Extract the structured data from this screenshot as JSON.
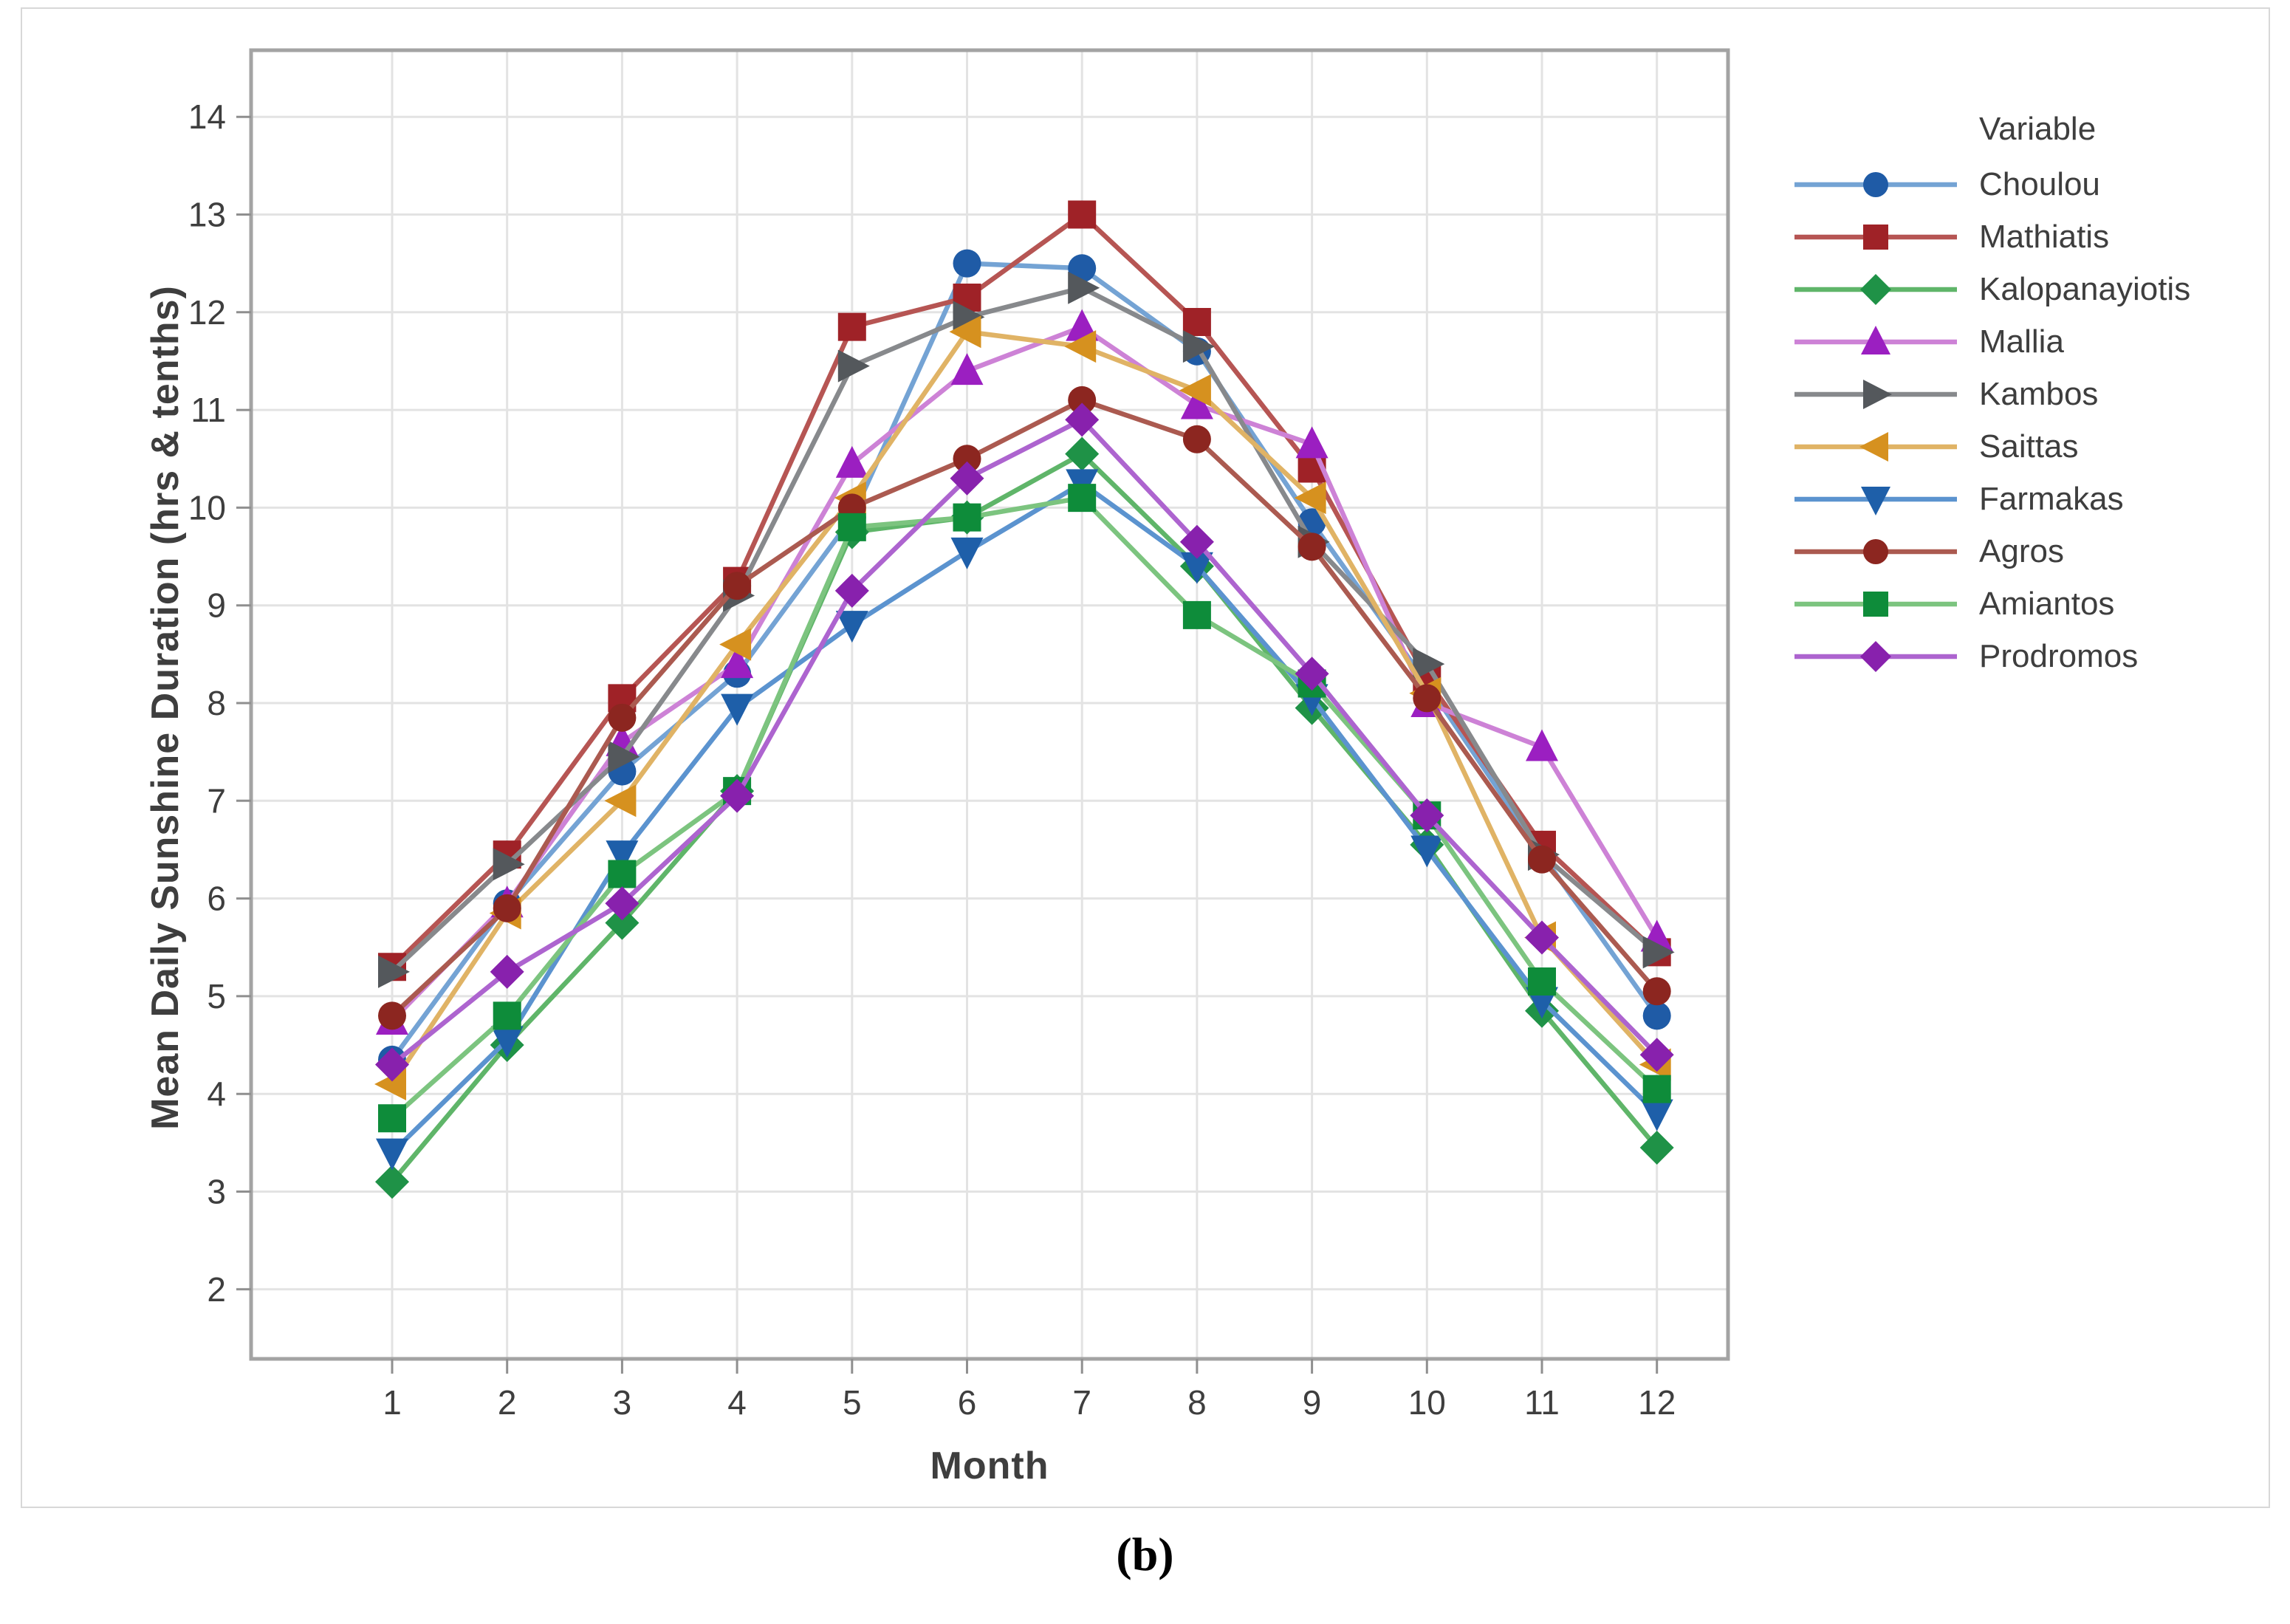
{
  "figure": {
    "caption": "(b)"
  },
  "chart_data": {
    "type": "line",
    "title": "",
    "xlabel": "Month",
    "ylabel": "Mean Daily Sunshine Duration (hrs & tenths)",
    "x": [
      1,
      2,
      3,
      4,
      5,
      6,
      7,
      8,
      9,
      10,
      11,
      12
    ],
    "xlim": [
      0.5,
      12.6
    ],
    "ylim": [
      2,
      14
    ],
    "yticks": [
      2,
      3,
      4,
      5,
      6,
      7,
      8,
      9,
      10,
      11,
      12,
      13,
      14
    ],
    "grid": true,
    "legend_title": "Variable",
    "legend_position": "right",
    "colors": {
      "gridline": "#e3e3e3",
      "frame": "#a3a3a3",
      "tick": "#8f8f8f",
      "tick_label": "#3e3e3e"
    },
    "series": [
      {
        "name": "Choulou",
        "marker": "circle",
        "line_color": "#74a3d4",
        "marker_color": "#1f5ba6",
        "values": [
          4.35,
          5.95,
          7.3,
          8.3,
          9.9,
          12.5,
          12.45,
          11.6,
          9.85,
          8.2,
          6.45,
          4.8
        ]
      },
      {
        "name": "Mathiatis",
        "marker": "square",
        "line_color": "#b65553",
        "marker_color": "#9f2227",
        "values": [
          5.3,
          6.45,
          8.05,
          9.25,
          11.85,
          12.15,
          13.0,
          11.9,
          10.4,
          8.25,
          6.55,
          5.45
        ]
      },
      {
        "name": "Kalopanayiotis",
        "marker": "diamond",
        "line_color": "#5fb569",
        "marker_color": "#1f9247",
        "values": [
          3.1,
          4.5,
          5.75,
          7.1,
          9.75,
          9.9,
          10.55,
          9.4,
          7.95,
          6.55,
          4.85,
          3.45
        ]
      },
      {
        "name": "Mallia",
        "marker": "triangle-up",
        "line_color": "#cd82d6",
        "marker_color": "#9b1fc1",
        "values": [
          4.75,
          5.95,
          7.6,
          8.4,
          10.45,
          11.4,
          11.85,
          11.05,
          10.65,
          8.0,
          7.55,
          5.6
        ]
      },
      {
        "name": "Kambos",
        "marker": "triangle-right",
        "line_color": "#87898c",
        "marker_color": "#54585c",
        "values": [
          5.25,
          6.35,
          7.45,
          9.1,
          11.45,
          11.95,
          12.25,
          11.65,
          9.65,
          8.4,
          6.45,
          5.45
        ]
      },
      {
        "name": "Saittas",
        "marker": "triangle-left",
        "line_color": "#e0b365",
        "marker_color": "#d6911f",
        "values": [
          4.1,
          5.85,
          7.0,
          8.6,
          10.1,
          11.8,
          11.65,
          11.2,
          10.1,
          8.1,
          5.6,
          4.3
        ]
      },
      {
        "name": "Farmakas",
        "marker": "triangle-down",
        "line_color": "#5b93cf",
        "marker_color": "#1e5fa9",
        "values": [
          3.4,
          4.55,
          6.45,
          7.95,
          8.8,
          9.55,
          10.25,
          9.4,
          8.05,
          6.5,
          4.95,
          3.8
        ]
      },
      {
        "name": "Agros",
        "marker": "circle",
        "line_color": "#ab5a50",
        "marker_color": "#8c2620",
        "values": [
          4.8,
          5.9,
          7.85,
          9.2,
          10.0,
          10.5,
          11.1,
          10.7,
          9.6,
          8.05,
          6.4,
          5.05
        ]
      },
      {
        "name": "Amiantos",
        "marker": "square",
        "line_color": "#7cc47f",
        "marker_color": "#0e8c3a",
        "values": [
          3.75,
          4.8,
          6.25,
          7.1,
          9.8,
          9.9,
          10.1,
          8.9,
          8.2,
          6.85,
          5.15,
          4.05
        ]
      },
      {
        "name": "Prodromos",
        "marker": "diamond",
        "line_color": "#ad64cf",
        "marker_color": "#8821ad",
        "values": [
          4.3,
          5.25,
          5.95,
          7.05,
          9.15,
          10.3,
          10.9,
          9.65,
          8.3,
          6.85,
          5.6,
          4.4
        ]
      }
    ]
  }
}
